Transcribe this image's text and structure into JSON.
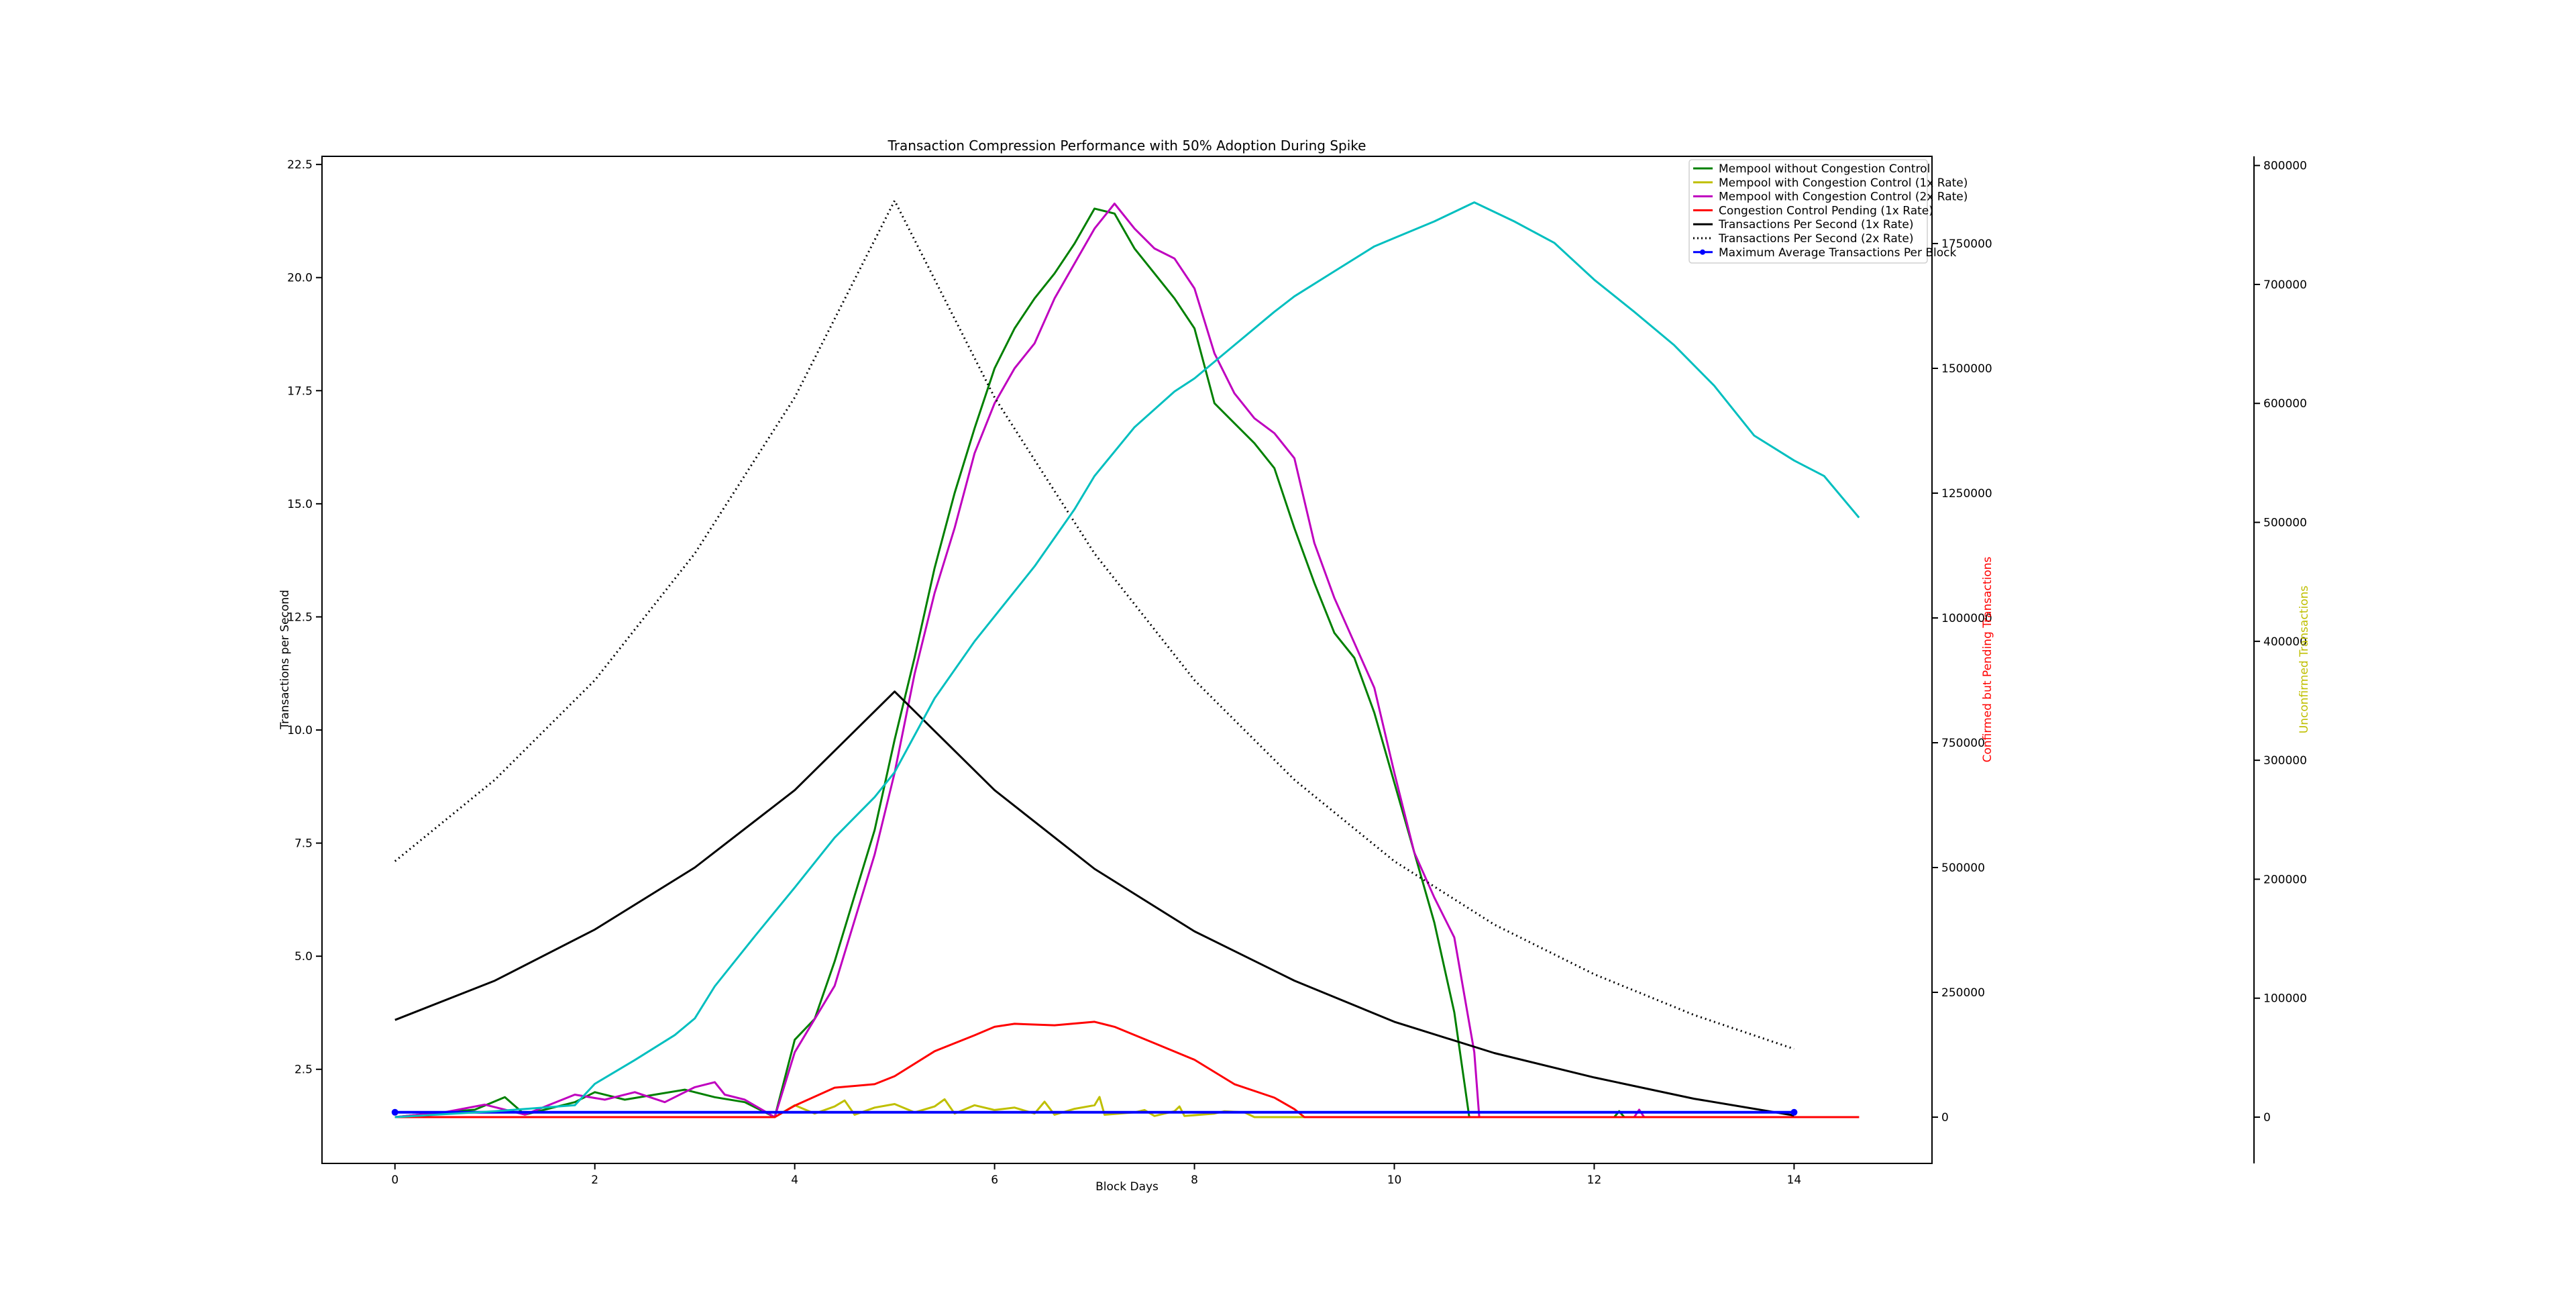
{
  "chart_data": {
    "type": "line",
    "title": "Transaction Compression Performance with 50% Adoption During Spike",
    "xlabel": "Block Days",
    "xlim": [
      -0.73,
      15.38
    ],
    "xticks": [
      0,
      2,
      4,
      6,
      8,
      10,
      12,
      14
    ],
    "grid": false,
    "legend_placement": "upper right",
    "axes": {
      "left": {
        "label": "Transactions per Second",
        "label_color": "#000000",
        "ylim": [
          0.42,
          22.68
        ],
        "ticks": [
          2.5,
          5.0,
          7.5,
          10.0,
          12.5,
          15.0,
          17.5,
          20.0,
          22.5
        ],
        "tick_labels": [
          "2.5",
          "5.0",
          "7.5",
          "10.0",
          "12.5",
          "15.0",
          "17.5",
          "20.0",
          "22.5"
        ]
      },
      "right1": {
        "label": "Confirmed but Pending Transactions",
        "label_color": "#ff0000",
        "ylim": [
          -92700,
          1924700
        ],
        "ticks": [
          0,
          250000,
          500000,
          750000,
          1000000,
          1250000,
          1500000,
          1750000
        ],
        "tick_labels": [
          "0",
          "250000",
          "500000",
          "750000",
          "1000000",
          "1250000",
          "1500000",
          "1750000"
        ]
      },
      "right2": {
        "label": "Unconfirmed Transactions",
        "label_color": "#bfbf00",
        "ylim": [
          -38900,
          807700
        ],
        "ticks": [
          0,
          100000,
          200000,
          300000,
          400000,
          500000,
          600000,
          700000,
          800000
        ],
        "tick_labels": [
          "0",
          "100000",
          "200000",
          "300000",
          "400000",
          "500000",
          "600000",
          "700000",
          "800000"
        ]
      }
    },
    "series": [
      {
        "name": "Mempool without Congestion Control",
        "color": "#008000",
        "style": "solid",
        "axis": "right1",
        "x": [
          0,
          0.4,
          0.8,
          1.1,
          1.3,
          1.8,
          2.0,
          2.3,
          2.6,
          2.9,
          3.2,
          3.5,
          3.8,
          4.0,
          4.2,
          4.4,
          4.6,
          4.8,
          5.0,
          5.2,
          5.4,
          5.6,
          5.8,
          6.0,
          6.2,
          6.4,
          6.6,
          6.8,
          7.0,
          7.2,
          7.4,
          7.6,
          7.8,
          8.0,
          8.2,
          8.4,
          8.6,
          8.8,
          9.0,
          9.2,
          9.4,
          9.6,
          9.8,
          10.0,
          10.2,
          10.4,
          10.6,
          10.7,
          10.75,
          12.2,
          12.25,
          12.3,
          14.65
        ],
        "y": [
          0,
          8000,
          15000,
          40000,
          5000,
          30000,
          50000,
          35000,
          45000,
          55000,
          40000,
          30000,
          0,
          155000,
          197000,
          312000,
          444000,
          575000,
          756000,
          921000,
          1100000,
          1250000,
          1380000,
          1500000,
          1580000,
          1640000,
          1690000,
          1750000,
          1820000,
          1810000,
          1740000,
          1690000,
          1640000,
          1580000,
          1430000,
          1390000,
          1350000,
          1300000,
          1180000,
          1070000,
          970000,
          920000,
          810000,
          670000,
          530000,
          390000,
          210000,
          70000,
          0,
          0,
          12000,
          0,
          0
        ]
      },
      {
        "name": "Mempool with Congestion Control (1x Rate)",
        "color": "#bfbf00",
        "style": "solid",
        "axis": "right2",
        "x": [
          0,
          3.8,
          4.0,
          4.2,
          4.4,
          4.5,
          4.6,
          4.8,
          5.0,
          5.2,
          5.4,
          5.5,
          5.6,
          5.8,
          6.0,
          6.2,
          6.4,
          6.5,
          6.6,
          6.8,
          7.0,
          7.05,
          7.1,
          7.4,
          7.5,
          7.6,
          7.8,
          7.85,
          7.9,
          8.2,
          8.3,
          8.5,
          8.6,
          14.65
        ],
        "y": [
          0,
          0,
          10000,
          3000,
          9000,
          14000,
          2000,
          8000,
          11000,
          4000,
          9000,
          15000,
          3000,
          10000,
          6000,
          8000,
          3000,
          13000,
          2000,
          7000,
          10000,
          17000,
          2000,
          4000,
          6000,
          1000,
          5000,
          9000,
          1000,
          3000,
          5000,
          4000,
          0,
          0
        ]
      },
      {
        "name": "Mempool with Congestion Control (2x Rate)",
        "color": "#bf00bf",
        "style": "solid",
        "axis": "right1",
        "x": [
          0,
          0.5,
          0.9,
          1.3,
          1.8,
          2.1,
          2.4,
          2.7,
          3.0,
          3.2,
          3.3,
          3.5,
          3.8,
          4.0,
          4.4,
          4.8,
          5.0,
          5.2,
          5.4,
          5.6,
          5.8,
          6.0,
          6.2,
          6.4,
          6.6,
          6.8,
          7.0,
          7.2,
          7.4,
          7.6,
          7.8,
          8.0,
          8.2,
          8.4,
          8.6,
          8.8,
          9.0,
          9.2,
          9.4,
          9.6,
          9.8,
          10.0,
          10.2,
          10.4,
          10.6,
          10.8,
          10.85,
          12.4,
          12.45,
          12.5,
          14.65
        ],
        "y": [
          0,
          10000,
          25000,
          5000,
          45000,
          35000,
          50000,
          30000,
          60000,
          70000,
          45000,
          35000,
          0,
          130000,
          263000,
          526000,
          690000,
          888000,
          1050000,
          1180000,
          1330000,
          1430000,
          1500000,
          1550000,
          1640000,
          1710000,
          1780000,
          1830000,
          1780000,
          1740000,
          1720000,
          1660000,
          1530000,
          1450000,
          1400000,
          1370000,
          1320000,
          1150000,
          1040000,
          950000,
          860000,
          690000,
          530000,
          440000,
          360000,
          130000,
          0,
          0,
          15000,
          0,
          0
        ]
      },
      {
        "name": "Congestion Control Pending (1x Rate)",
        "color": "#ff0000",
        "style": "solid",
        "axis": "right1",
        "x": [
          0,
          3.8,
          4.0,
          4.4,
          4.8,
          5.0,
          5.4,
          5.8,
          6.0,
          6.2,
          6.6,
          7.0,
          7.2,
          7.6,
          8.0,
          8.4,
          8.8,
          9.0,
          9.1,
          14.65
        ],
        "y": [
          0,
          0,
          23000,
          59000,
          66000,
          82000,
          132000,
          164000,
          181000,
          187000,
          184000,
          191000,
          181000,
          148000,
          115000,
          66000,
          39000,
          16000,
          0,
          0
        ]
      },
      {
        "name": "Transactions Per Second (1x Rate)",
        "color": "#000000",
        "style": "solid",
        "axis": "left",
        "x": [
          0,
          1,
          2,
          3,
          4,
          5,
          6,
          7,
          8,
          9,
          10,
          11,
          12,
          13,
          14
        ],
        "y": [
          3.59,
          4.46,
          5.59,
          6.96,
          8.67,
          10.85,
          8.67,
          6.93,
          5.55,
          4.46,
          3.55,
          2.86,
          2.32,
          1.85,
          1.48
        ]
      },
      {
        "name": "Transactions Per Second (2x Rate)",
        "color": "#000000",
        "style": "dotted",
        "axis": "left",
        "x": [
          0,
          1,
          2,
          3,
          4,
          5,
          6,
          7,
          8,
          9,
          10,
          11,
          12,
          13,
          14
        ],
        "y": [
          7.1,
          8.9,
          11.1,
          13.9,
          17.35,
          21.7,
          17.35,
          13.9,
          11.1,
          8.9,
          7.1,
          5.7,
          4.6,
          3.7,
          2.95
        ]
      },
      {
        "name": "Maximum Average Transactions Per Block",
        "color": "#0000ff",
        "style": "solid-marker",
        "axis": "left",
        "x": [
          0,
          14
        ],
        "y": [
          1.55,
          1.55
        ]
      },
      {
        "color": "#00bfbf",
        "style": "solid",
        "axis": "right2",
        "x": [
          0,
          1.0,
          1.8,
          2.0,
          2.4,
          2.8,
          3.0,
          3.2,
          3.6,
          4.0,
          4.4,
          4.8,
          5.0,
          5.4,
          5.8,
          6.0,
          6.4,
          6.8,
          7.0,
          7.4,
          7.8,
          8.0,
          8.4,
          8.8,
          9.0,
          9.4,
          9.8,
          10.0,
          10.4,
          10.8,
          11.2,
          11.6,
          12.0,
          12.4,
          12.8,
          13.2,
          13.6,
          14.0,
          14.3,
          14.65
        ],
        "y": [
          0,
          5000,
          10000,
          28000,
          48000,
          69000,
          83000,
          110000,
          152000,
          193000,
          235000,
          269000,
          290000,
          352000,
          400000,
          421000,
          463000,
          511000,
          539000,
          580000,
          610000,
          621000,
          649000,
          677000,
          690000,
          711000,
          732000,
          739000,
          753000,
          769000,
          753000,
          735000,
          704000,
          677000,
          649000,
          615000,
          573000,
          552000,
          539000,
          504000
        ]
      }
    ]
  }
}
